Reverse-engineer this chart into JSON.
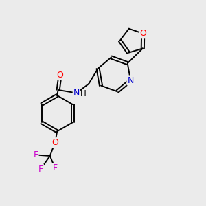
{
  "background_color": "#ebebeb",
  "bond_color": "#000000",
  "atom_colors": {
    "O": "#ff0000",
    "N": "#0000cd",
    "F": "#cc00cc",
    "C": "#000000"
  },
  "figsize": [
    3.0,
    3.0
  ],
  "dpi": 100
}
